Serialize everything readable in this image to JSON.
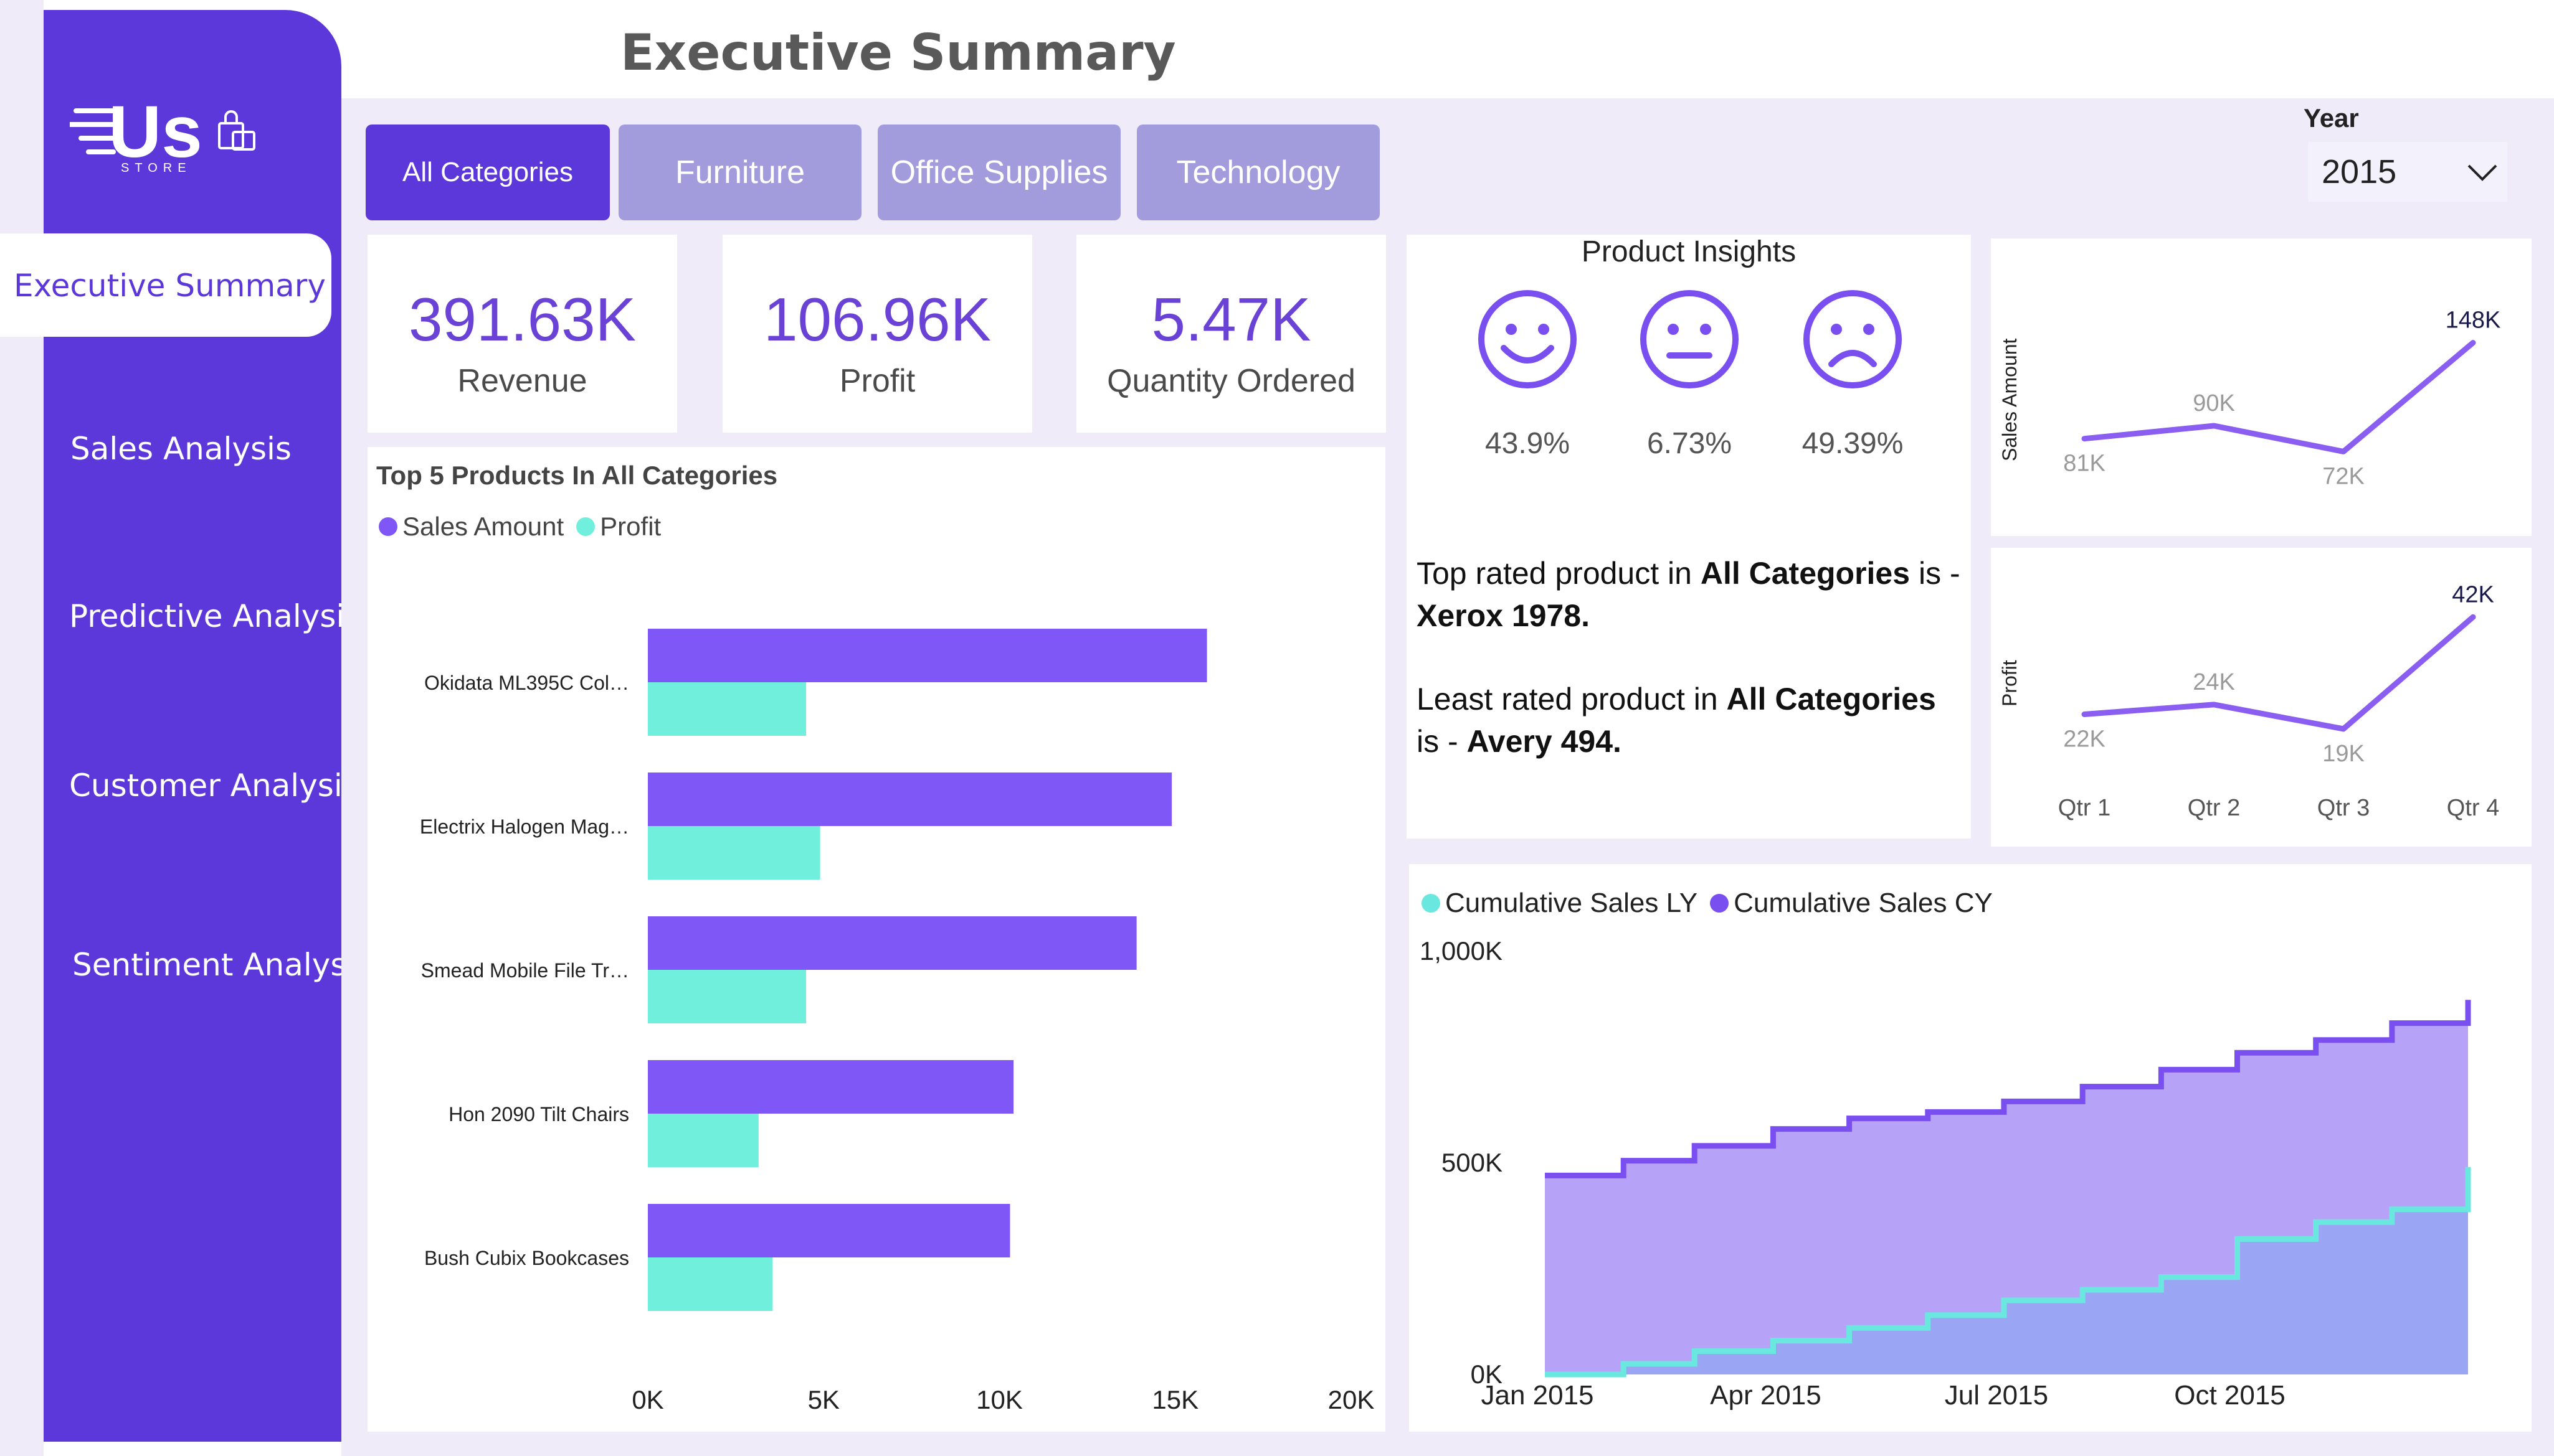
{
  "brand": {
    "logo_text": "Us",
    "logo_sub": "STORE"
  },
  "page_title": "Executive Summary",
  "sidebar": {
    "items": [
      {
        "label": "Executive Summary",
        "active": true
      },
      {
        "label": "Sales Analysis"
      },
      {
        "label": "Predictive Analysis"
      },
      {
        "label": "Customer Analysis"
      },
      {
        "label": "Sentiment Analysis"
      }
    ]
  },
  "tabs": [
    {
      "label": "All Categories",
      "active": true
    },
    {
      "label": "Furniture"
    },
    {
      "label": "Office Supplies"
    },
    {
      "label": "Technology"
    }
  ],
  "year_filter": {
    "label": "Year",
    "value": "2015"
  },
  "kpis": [
    {
      "value": "391.63K",
      "label": "Revenue"
    },
    {
      "value": "106.96K",
      "label": "Profit"
    },
    {
      "value": "5.47K",
      "label": "Quantity Ordered"
    }
  ],
  "product_insights": {
    "title": "Product Insights",
    "sentiments": [
      {
        "icon": "happy-face-icon",
        "value": "43.9%"
      },
      {
        "icon": "neutral-face-icon",
        "value": "6.73%"
      },
      {
        "icon": "sad-face-icon",
        "value": "49.39%"
      }
    ],
    "top_prefix": "Top rated product in ",
    "top_category": "All Categories",
    "top_mid": " is - ",
    "top_product": "Xerox 1978.",
    "least_prefix": "Least rated product in ",
    "least_category": "All Categories",
    "least_mid": " is - ",
    "least_product": "Avery 494."
  },
  "colors": {
    "accent": "#5c38da",
    "bar_sales": "#7f57f7",
    "bar_profit": "#70f0dc",
    "line": "#8a5ef0",
    "area_cy": "#b6a2f7",
    "area_ly": "#9aa6f4",
    "line_ly": "#6ae8e0"
  },
  "chart_data": [
    {
      "type": "bar",
      "title": "Top 5 Products In All Categories",
      "categories": [
        "Okidata ML395C Col…",
        "Electrix Halogen Mag…",
        "Smead Mobile File Tr…",
        "Hon 2090 Tilt Chairs",
        "Bush Cubix Bookcases"
      ],
      "series": [
        {
          "name": "Sales Amount",
          "values": [
            15900,
            14900,
            13900,
            10400,
            10300
          ]
        },
        {
          "name": "Profit",
          "values": [
            4500,
            4900,
            4500,
            3150,
            3550
          ]
        }
      ],
      "xlim": [
        0,
        20000
      ],
      "xticks": [
        "0K",
        "5K",
        "10K",
        "15K",
        "20K"
      ],
      "orientation": "horizontal",
      "legend": "top-left"
    },
    {
      "type": "line",
      "ylabel": "Sales Amount",
      "categories": [
        "Qtr 1",
        "Qtr 2",
        "Qtr 3",
        "Qtr 4"
      ],
      "values": [
        81,
        90,
        72,
        148
      ],
      "labels": [
        "81K",
        "90K",
        "72K",
        "148K"
      ]
    },
    {
      "type": "line",
      "ylabel": "Profit",
      "categories": [
        "Qtr 1",
        "Qtr 2",
        "Qtr 3",
        "Qtr 4"
      ],
      "values": [
        22,
        24,
        19,
        42
      ],
      "labels": [
        "22K",
        "24K",
        "19K",
        "42K"
      ]
    },
    {
      "type": "area",
      "series": [
        {
          "name": "Cumulative Sales LY",
          "x": [
            "2015-01-01",
            "2015-02-01",
            "2015-03-01",
            "2015-04-01",
            "2015-05-01",
            "2015-06-01",
            "2015-07-01",
            "2015-08-01",
            "2015-09-01",
            "2015-10-01",
            "2015-11-01",
            "2015-12-01",
            "2015-12-31"
          ],
          "values": [
            0,
            25,
            55,
            80,
            110,
            140,
            175,
            200,
            230,
            320,
            360,
            390,
            490
          ]
        },
        {
          "name": "Cumulative Sales CY",
          "x": [
            "2015-01-01",
            "2015-02-01",
            "2015-03-01",
            "2015-04-01",
            "2015-05-01",
            "2015-06-01",
            "2015-07-01",
            "2015-08-01",
            "2015-09-01",
            "2015-10-01",
            "2015-11-01",
            "2015-12-01",
            "2015-12-31"
          ],
          "values": [
            470,
            505,
            540,
            580,
            605,
            620,
            645,
            680,
            720,
            760,
            790,
            830,
            885
          ]
        }
      ],
      "yticks": [
        "0K",
        "500K",
        "1,000K"
      ],
      "ylim": [
        0,
        1000
      ],
      "xticks": [
        "Jan 2015",
        "Apr 2015",
        "Jul 2015",
        "Oct 2015"
      ],
      "legend": "top-left"
    }
  ]
}
